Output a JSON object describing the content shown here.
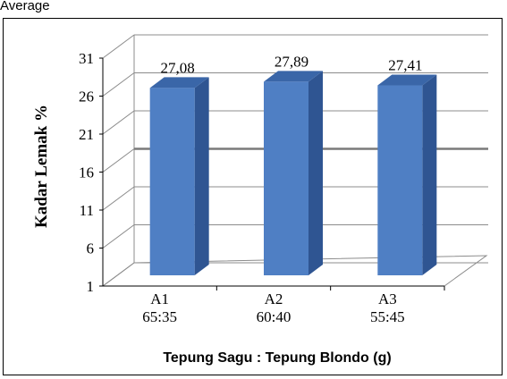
{
  "top_fragment": "Average",
  "chart_data": {
    "type": "bar",
    "ylabel": "Kadar Lemak %",
    "xlabel": "Tepung Sagu : Tepung Blondo (g)",
    "categories": [
      "A1\n65:35",
      "A2\n60:40",
      "A3\n55:45"
    ],
    "category_lines": [
      [
        "A1",
        "65:35"
      ],
      [
        "A2",
        "60:40"
      ],
      [
        "A3",
        "55:45"
      ]
    ],
    "values": [
      27.08,
      27.89,
      27.41
    ],
    "value_labels": [
      "27,08",
      "27,89",
      "27,41"
    ],
    "yticks": [
      1,
      6,
      11,
      16,
      21,
      26,
      31
    ],
    "ylim": [
      1,
      31
    ],
    "grid": true,
    "bar_color": "#4f7fc4"
  }
}
